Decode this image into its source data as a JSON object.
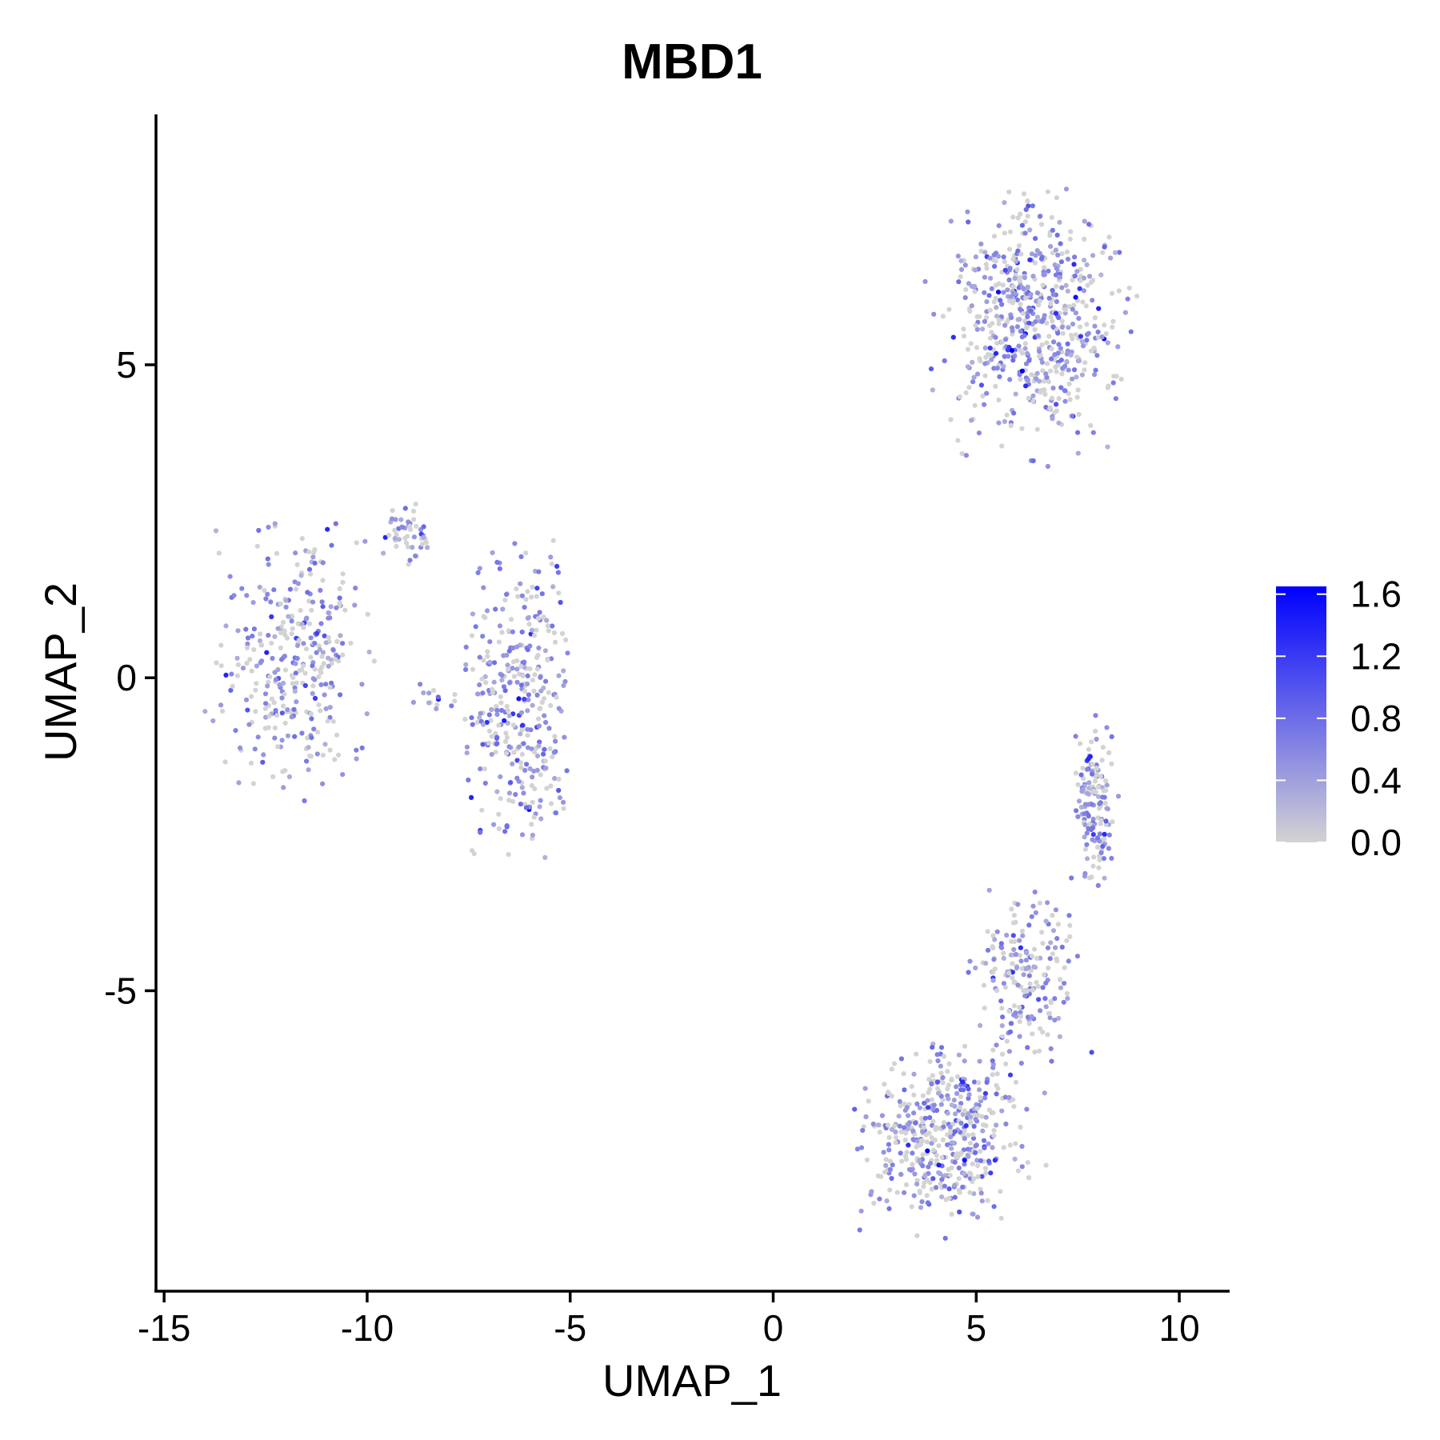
{
  "chart_data": {
    "type": "scatter",
    "title": "MBD1",
    "xlabel": "UMAP_1",
    "ylabel": "UMAP_2",
    "xlim": [
      -15.2,
      11.2
    ],
    "ylim": [
      -9.8,
      9.0
    ],
    "x_ticks": [
      {
        "value": -15,
        "label": "-15"
      },
      {
        "value": -10,
        "label": "-10"
      },
      {
        "value": -5,
        "label": "-5"
      },
      {
        "value": 0,
        "label": "0"
      },
      {
        "value": 5,
        "label": "5"
      },
      {
        "value": 10,
        "label": "10"
      }
    ],
    "y_ticks": [
      {
        "value": 5,
        "label": "5"
      },
      {
        "value": 0,
        "label": "0"
      },
      {
        "value": -5,
        "label": "-5"
      }
    ],
    "grid": false,
    "legend": {
      "placement": "right",
      "type": "colorbar",
      "min": 0.0,
      "max": 1.65,
      "color_low": "#d3d3d3",
      "color_high": "#0000ff",
      "ticks": [
        {
          "value": 0.0,
          "label": "0.0"
        },
        {
          "value": 0.4,
          "label": "0.4"
        },
        {
          "value": 0.8,
          "label": "0.8"
        },
        {
          "value": 1.2,
          "label": "1.2"
        },
        {
          "value": 1.6,
          "label": "1.6"
        }
      ]
    },
    "clusters": [
      {
        "center": [
          -11.8,
          0.3
        ],
        "spread": [
          1.2,
          1.5
        ],
        "n": 340,
        "x_range": [
          -14.2,
          -9.6
        ],
        "y_range": [
          -2.0,
          2.5
        ]
      },
      {
        "center": [
          -8.9,
          2.3
        ],
        "spread": [
          0.5,
          0.35
        ],
        "n": 50,
        "x_range": [
          -9.9,
          -8.5
        ],
        "y_range": [
          1.8,
          3.1
        ]
      },
      {
        "center": [
          -6.3,
          -0.4
        ],
        "spread": [
          0.9,
          1.7
        ],
        "n": 360,
        "x_range": [
          -7.6,
          -4.9
        ],
        "y_range": [
          -2.9,
          2.2
        ]
      },
      {
        "center": [
          -8.2,
          -0.3
        ],
        "spread": [
          0.4,
          0.15
        ],
        "n": 14,
        "x_range": [
          -9.0,
          -7.6
        ],
        "y_range": [
          -0.6,
          0.0
        ]
      },
      {
        "center": [
          6.4,
          5.7
        ],
        "spread": [
          1.3,
          1.25
        ],
        "n": 620,
        "x_range": [
          3.6,
          9.0
        ],
        "y_range": [
          2.9,
          8.1
        ]
      },
      {
        "center": [
          4.2,
          -7.3
        ],
        "spread": [
          1.3,
          0.9
        ],
        "n": 480,
        "x_range": [
          2.0,
          7.1
        ],
        "y_range": [
          -9.0,
          -5.0
        ]
      },
      {
        "center": [
          6.2,
          -4.8
        ],
        "spread": [
          0.8,
          0.9
        ],
        "n": 200,
        "x_range": [
          4.6,
          7.9
        ],
        "y_range": [
          -6.6,
          -3.0
        ]
      },
      {
        "center": [
          7.9,
          -2.0
        ],
        "spread": [
          0.35,
          0.8
        ],
        "n": 150,
        "x_range": [
          7.2,
          8.6
        ],
        "y_range": [
          -3.6,
          -0.4
        ]
      }
    ]
  }
}
